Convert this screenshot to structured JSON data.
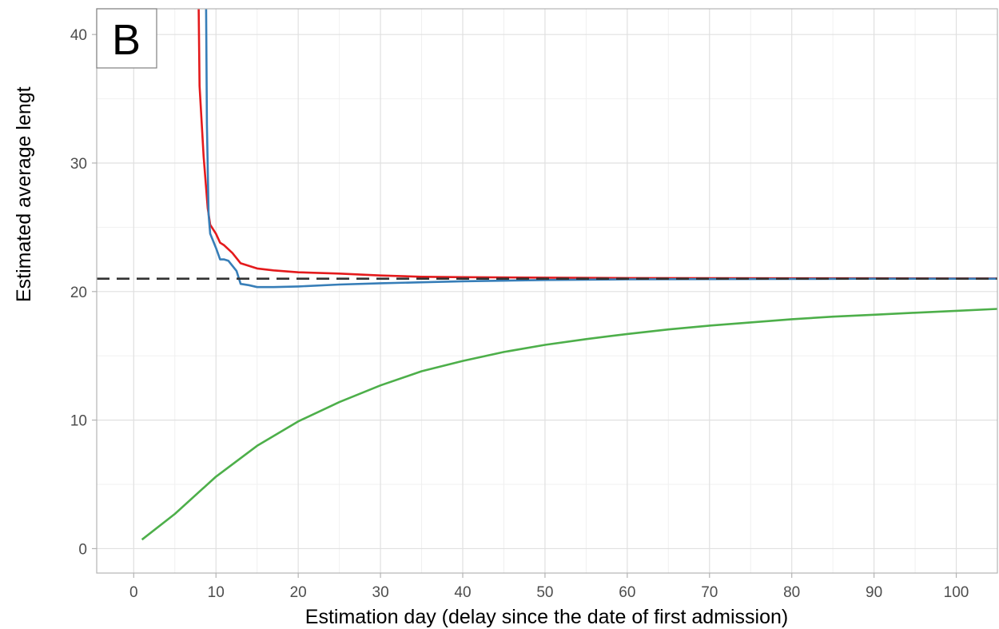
{
  "chart_data": {
    "type": "line",
    "panel_label": "B",
    "xlabel": "Estimation day (delay since the date of first admission)",
    "ylabel": "Estimated average lengt",
    "xlim": [
      -4.5,
      105
    ],
    "ylim": [
      -1.9,
      42
    ],
    "x_ticks": [
      0,
      10,
      20,
      30,
      40,
      50,
      60,
      70,
      80,
      90,
      100
    ],
    "y_ticks": [
      0,
      10,
      20,
      30,
      40
    ],
    "grid": true,
    "legend": "none",
    "reference_line": {
      "y": 21,
      "style": "dashed",
      "color": "#333333"
    },
    "series": [
      {
        "color": "#e41a1c",
        "points": [
          [
            7.9,
            42
          ],
          [
            8,
            36
          ],
          [
            8.5,
            30.5
          ],
          [
            9,
            26.5
          ],
          [
            9.3,
            25.2
          ],
          [
            10,
            24.5
          ],
          [
            10.5,
            23.8
          ],
          [
            11,
            23.6
          ],
          [
            12,
            23
          ],
          [
            13,
            22.2
          ],
          [
            14,
            22
          ],
          [
            15,
            21.8
          ],
          [
            17,
            21.65
          ],
          [
            20,
            21.5
          ],
          [
            25,
            21.4
          ],
          [
            30,
            21.25
          ],
          [
            35,
            21.15
          ],
          [
            40,
            21.12
          ],
          [
            50,
            21.08
          ],
          [
            60,
            21.05
          ],
          [
            70,
            21.04
          ],
          [
            80,
            21.03
          ],
          [
            90,
            21.03
          ],
          [
            100,
            21.02
          ],
          [
            105,
            21.02
          ]
        ]
      },
      {
        "color": "#377eb8",
        "points": [
          [
            8.8,
            42
          ],
          [
            8.9,
            33
          ],
          [
            9.1,
            26
          ],
          [
            9.3,
            24.5
          ],
          [
            10,
            23.4
          ],
          [
            10.5,
            22.5
          ],
          [
            11,
            22.5
          ],
          [
            11.5,
            22.4
          ],
          [
            12,
            22
          ],
          [
            12.5,
            21.6
          ],
          [
            13,
            20.6
          ],
          [
            14,
            20.5
          ],
          [
            15,
            20.35
          ],
          [
            17,
            20.35
          ],
          [
            20,
            20.4
          ],
          [
            25,
            20.55
          ],
          [
            30,
            20.65
          ],
          [
            35,
            20.72
          ],
          [
            40,
            20.8
          ],
          [
            50,
            20.9
          ],
          [
            60,
            20.95
          ],
          [
            70,
            20.97
          ],
          [
            80,
            20.98
          ],
          [
            90,
            21
          ],
          [
            100,
            21
          ],
          [
            105,
            21
          ]
        ]
      },
      {
        "color": "#4daf4a",
        "points": [
          [
            1,
            0.7
          ],
          [
            5,
            2.7
          ],
          [
            10,
            5.6
          ],
          [
            15,
            8.0
          ],
          [
            20,
            9.9
          ],
          [
            25,
            11.4
          ],
          [
            30,
            12.7
          ],
          [
            35,
            13.8
          ],
          [
            40,
            14.6
          ],
          [
            45,
            15.3
          ],
          [
            50,
            15.85
          ],
          [
            55,
            16.3
          ],
          [
            60,
            16.7
          ],
          [
            65,
            17.05
          ],
          [
            70,
            17.35
          ],
          [
            75,
            17.6
          ],
          [
            80,
            17.85
          ],
          [
            85,
            18.05
          ],
          [
            90,
            18.2
          ],
          [
            95,
            18.35
          ],
          [
            100,
            18.5
          ],
          [
            105,
            18.65
          ]
        ]
      }
    ]
  }
}
